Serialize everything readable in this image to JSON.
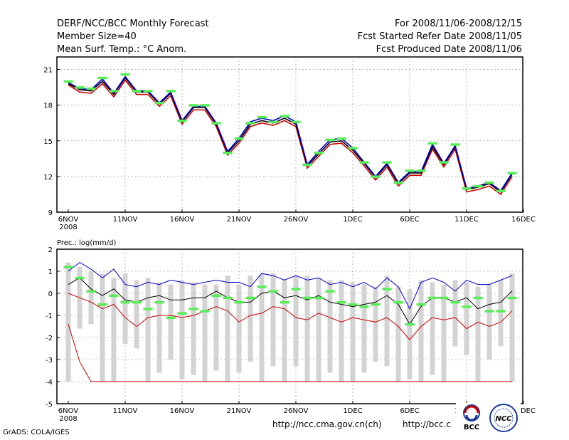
{
  "header": {
    "title": "DERF/NCC/BCC Monthly Forecast",
    "member_size": "Member Size=40",
    "variable": "Mean Surf. Temp.: °C Anom.",
    "period": "For 2008/11/06-2008/12/15",
    "started": "Fcst Started Refer Date 2008/11/05",
    "produced": "Fcst Produced Date 2008/11/06"
  },
  "footer": {
    "grads": "GrADS: COLA/IGES",
    "url1": "http://ncc.cma.gov.cn(ch)",
    "url2": "http://bcc.c",
    "bcc_logo": "BCC",
    "ncc_logo": "NCC"
  },
  "chart_data": [
    {
      "type": "line",
      "title": "Mean Surf. Temp.: °C Anom.",
      "x_ticks": [
        "6NOV",
        "11NOV",
        "16NOV",
        "21NOV",
        "26NOV",
        "1DEC",
        "6DEC",
        "11DEC",
        "16DEC"
      ],
      "x_year": "2008",
      "ylim": [
        9,
        22
      ],
      "y_ticks": [
        "9",
        "12",
        "15",
        "18",
        "21"
      ],
      "y_tick_values": [
        9,
        12,
        15,
        18,
        21
      ],
      "series": [
        {
          "name": "upper",
          "color": "#0000cc",
          "values": [
            19.9,
            19.4,
            19.3,
            20.2,
            19.0,
            20.4,
            19.2,
            19.2,
            18.2,
            19.1,
            16.7,
            17.9,
            17.9,
            16.5,
            14.1,
            15.2,
            16.6,
            16.9,
            16.7,
            17.1,
            16.6,
            13.0,
            14.1,
            15.1,
            15.2,
            14.4,
            13.2,
            12.0,
            13.1,
            11.5,
            12.4,
            12.4,
            14.7,
            13.1,
            14.6,
            11.0,
            11.2,
            11.5,
            10.8,
            12.3
          ]
        },
        {
          "name": "mean",
          "color": "#000000",
          "values": [
            19.8,
            19.3,
            19.2,
            20.0,
            18.9,
            20.3,
            19.1,
            19.1,
            18.1,
            19.0,
            16.6,
            17.8,
            17.8,
            16.4,
            14.0,
            15.0,
            16.4,
            16.7,
            16.5,
            16.9,
            16.4,
            12.9,
            13.9,
            14.9,
            15.0,
            14.2,
            13.1,
            11.9,
            13.0,
            11.4,
            12.3,
            12.3,
            14.5,
            13.0,
            14.5,
            10.9,
            11.1,
            11.4,
            10.7,
            12.2
          ]
        },
        {
          "name": "lower",
          "color": "#cc0000",
          "values": [
            19.7,
            19.1,
            19.0,
            19.8,
            18.7,
            20.1,
            18.9,
            18.9,
            17.9,
            18.8,
            16.4,
            17.6,
            17.6,
            16.2,
            13.8,
            14.8,
            16.2,
            16.5,
            16.3,
            16.7,
            16.2,
            12.7,
            13.7,
            14.7,
            14.8,
            14.0,
            12.9,
            11.7,
            12.8,
            11.2,
            12.1,
            12.1,
            14.3,
            12.8,
            14.3,
            10.7,
            10.9,
            11.2,
            10.5,
            12.0
          ]
        }
      ],
      "markers": {
        "name": "observed climatology",
        "color": "#55ee55",
        "values": [
          20.0,
          19.5,
          19.4,
          20.3,
          19.2,
          20.6,
          19.2,
          19.2,
          18.2,
          19.2,
          16.7,
          18.0,
          18.0,
          16.5,
          14.0,
          15.2,
          16.5,
          17.0,
          16.6,
          17.1,
          16.6,
          13.0,
          14.0,
          15.1,
          15.2,
          14.4,
          13.2,
          12.0,
          13.2,
          11.5,
          12.5,
          12.5,
          14.8,
          13.2,
          14.7,
          11.0,
          11.2,
          11.5,
          10.8,
          12.3
        ]
      }
    },
    {
      "type": "line",
      "title": "Prec.: log(mm/d)",
      "x_ticks": [
        "6NOV",
        "11NOV",
        "16NOV",
        "21NOV",
        "26NOV",
        "1DEC",
        "6DEC",
        "11DEC",
        "16DEC"
      ],
      "x_year": "2008",
      "ylim": [
        -5,
        2
      ],
      "y_ticks": [
        "-5",
        "-4",
        "-3",
        "-2",
        "-1",
        "0",
        "1",
        "2"
      ],
      "y_tick_values": [
        -5,
        -4,
        -3,
        -2,
        -1,
        0,
        1,
        2
      ],
      "ensemble_range": {
        "color": "#d3d3d3",
        "high": [
          1.4,
          1.2,
          1.0,
          0.9,
          0.7,
          0.9,
          0.6,
          0.7,
          0.5,
          0.4,
          0.6,
          0.5,
          0.4,
          0.4,
          0.8,
          0.4,
          0.8,
          0.9,
          0.9,
          0.6,
          0.8,
          0.8,
          0.7,
          0.6,
          0.6,
          0.5,
          0.4,
          0.3,
          0.8,
          0.3,
          0.2,
          0.6,
          0.5,
          0.4,
          0.6,
          0.5,
          0.3,
          0.4,
          0.6,
          0.9
        ],
        "low": [
          -4.0,
          -1.6,
          -1.4,
          -4.0,
          -4.0,
          -2.3,
          -2.5,
          -4.0,
          -3.6,
          -3.0,
          -3.9,
          -3.7,
          -4.0,
          -3.5,
          -4.0,
          -3.6,
          -3.1,
          -4.0,
          -3.3,
          -4.0,
          -3.3,
          -4.0,
          -4.0,
          -3.6,
          -4.0,
          -4.0,
          -3.6,
          -3.1,
          -3.3,
          -4.0,
          -3.9,
          -4.0,
          -3.7,
          -4.0,
          -2.4,
          -2.8,
          -4.0,
          -3.0,
          -2.4,
          -4.0
        ]
      },
      "series": [
        {
          "name": "upper",
          "color": "#0000cc",
          "values": [
            1.0,
            1.4,
            1.1,
            0.7,
            1.1,
            0.4,
            0.3,
            0.5,
            0.4,
            0.6,
            0.5,
            0.4,
            0.5,
            0.6,
            0.5,
            0.5,
            0.3,
            0.9,
            0.8,
            0.6,
            0.8,
            0.6,
            0.7,
            0.4,
            0.5,
            0.3,
            0.5,
            0.2,
            0.7,
            0.3,
            -0.7,
            0.5,
            0.7,
            0.5,
            0.1,
            0.6,
            0.4,
            0.4,
            0.6,
            0.8
          ]
        },
        {
          "name": "mean",
          "color": "#000000",
          "values": [
            0.4,
            0.7,
            0.2,
            -0.1,
            0.2,
            -0.3,
            -0.4,
            -0.2,
            -0.1,
            -0.3,
            -0.3,
            -0.2,
            -0.2,
            0.1,
            -0.2,
            -0.4,
            -0.4,
            0.0,
            0.1,
            -0.2,
            -0.1,
            -0.3,
            -0.1,
            -0.4,
            -0.5,
            -0.6,
            -0.5,
            -0.4,
            -0.1,
            -0.5,
            -1.4,
            -0.6,
            -0.2,
            -0.2,
            -0.4,
            -0.2,
            -0.7,
            -0.5,
            -0.4,
            0.1
          ]
        },
        {
          "name": "lower",
          "color": "#cc0000",
          "values": [
            0.0,
            -0.2,
            -0.4,
            -0.7,
            -0.5,
            -1.1,
            -1.5,
            -1.1,
            -1.0,
            -1.0,
            -1.1,
            -1.0,
            -0.8,
            -0.6,
            -0.8,
            -1.3,
            -1.0,
            -0.9,
            -0.6,
            -0.7,
            -1.1,
            -1.2,
            -0.9,
            -1.1,
            -1.3,
            -1.1,
            -1.2,
            -1.3,
            -1.1,
            -1.5,
            -2.1,
            -1.5,
            -1.1,
            -1.2,
            -1.1,
            -1.6,
            -1.3,
            -1.5,
            -1.3,
            -0.8
          ]
        },
        {
          "name": "min",
          "color": "#cc0000",
          "values": [
            -1.4,
            -3.1,
            -4.0,
            -4.0,
            -4.0,
            -4.0,
            -4.0,
            -4.0,
            -4.0,
            -4.0,
            -4.0,
            -4.0,
            -4.0,
            -4.0,
            -4.0,
            -4.0,
            -4.0,
            -4.0,
            -4.0,
            -4.0,
            -4.0,
            -4.0,
            -4.0,
            -4.0,
            -4.0,
            -4.0,
            -4.0,
            -4.0,
            -4.0,
            -4.0,
            -4.0,
            -4.0,
            -4.0,
            -4.0,
            -4.0,
            -4.0,
            -4.0,
            -4.0,
            -4.0,
            -4.0
          ]
        }
      ],
      "markers": {
        "name": "observed climatology",
        "color": "#55ee55",
        "values": [
          1.2,
          0.7,
          0.1,
          -0.5,
          -0.1,
          -0.4,
          -0.4,
          -0.7,
          -0.4,
          -1.1,
          -0.9,
          -0.7,
          -0.8,
          -0.1,
          -0.2,
          -0.4,
          -0.2,
          0.3,
          0.1,
          -0.4,
          0.2,
          -0.2,
          -0.2,
          0.1,
          -0.4,
          -0.5,
          -0.6,
          -0.5,
          0.2,
          -0.4,
          -1.4,
          -0.5,
          -0.2,
          -0.2,
          -0.4,
          -0.6,
          -0.2,
          -0.8,
          -0.8,
          -0.2
        ]
      }
    }
  ]
}
